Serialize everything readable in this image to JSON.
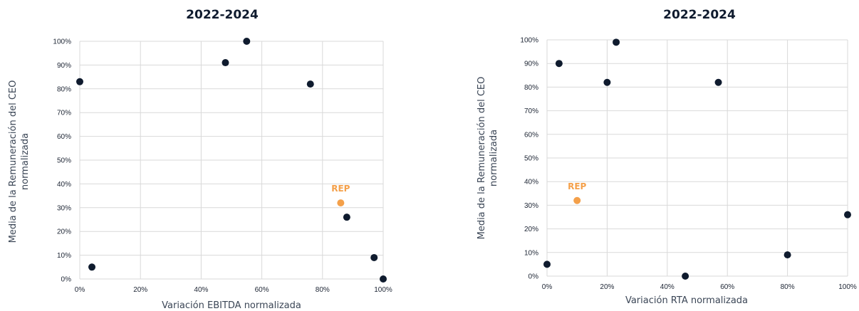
{
  "colors": {
    "point": "#0f1b2e",
    "highlight": "#f4a04a",
    "grid": "#d9d9d9"
  },
  "chart_data": [
    {
      "type": "scatter",
      "title": "2022-2024",
      "xlabel": "Variación EBITDA normalizada",
      "ylabel": "Media de la Remuneración del CEO normalizada",
      "xlim": [
        0,
        100
      ],
      "ylim": [
        0,
        100
      ],
      "x_ticks": [
        "0%",
        "20%",
        "40%",
        "60%",
        "80%",
        "100%"
      ],
      "y_ticks": [
        "0%",
        "10%",
        "20%",
        "30%",
        "40%",
        "50%",
        "60%",
        "70%",
        "80%",
        "90%",
        "100%"
      ],
      "grid": true,
      "points": [
        {
          "x": 0,
          "y": 83
        },
        {
          "x": 4,
          "y": 5
        },
        {
          "x": 48,
          "y": 91
        },
        {
          "x": 55,
          "y": 100
        },
        {
          "x": 76,
          "y": 82
        },
        {
          "x": 88,
          "y": 26
        },
        {
          "x": 97,
          "y": 9
        },
        {
          "x": 100,
          "y": 0
        }
      ],
      "highlight": {
        "label": "REP",
        "x": 86,
        "y": 32
      }
    },
    {
      "type": "scatter",
      "title": "2022-2024",
      "xlabel": "Variación RTA normalizada",
      "ylabel": "Media de la Remuneración del CEO normalizada",
      "xlim": [
        0,
        100
      ],
      "ylim": [
        0,
        100
      ],
      "x_ticks": [
        "0%",
        "20%",
        "40%",
        "60%",
        "80%",
        "100%"
      ],
      "y_ticks": [
        "0%",
        "10%",
        "20%",
        "30%",
        "40%",
        "50%",
        "60%",
        "70%",
        "80%",
        "90%",
        "100%"
      ],
      "grid": true,
      "points": [
        {
          "x": 0,
          "y": 5
        },
        {
          "x": 4,
          "y": 90
        },
        {
          "x": 20,
          "y": 82
        },
        {
          "x": 23,
          "y": 99
        },
        {
          "x": 46,
          "y": 0
        },
        {
          "x": 57,
          "y": 82
        },
        {
          "x": 80,
          "y": 9
        },
        {
          "x": 100,
          "y": 26
        }
      ],
      "highlight": {
        "label": "REP",
        "x": 10,
        "y": 32
      }
    }
  ]
}
